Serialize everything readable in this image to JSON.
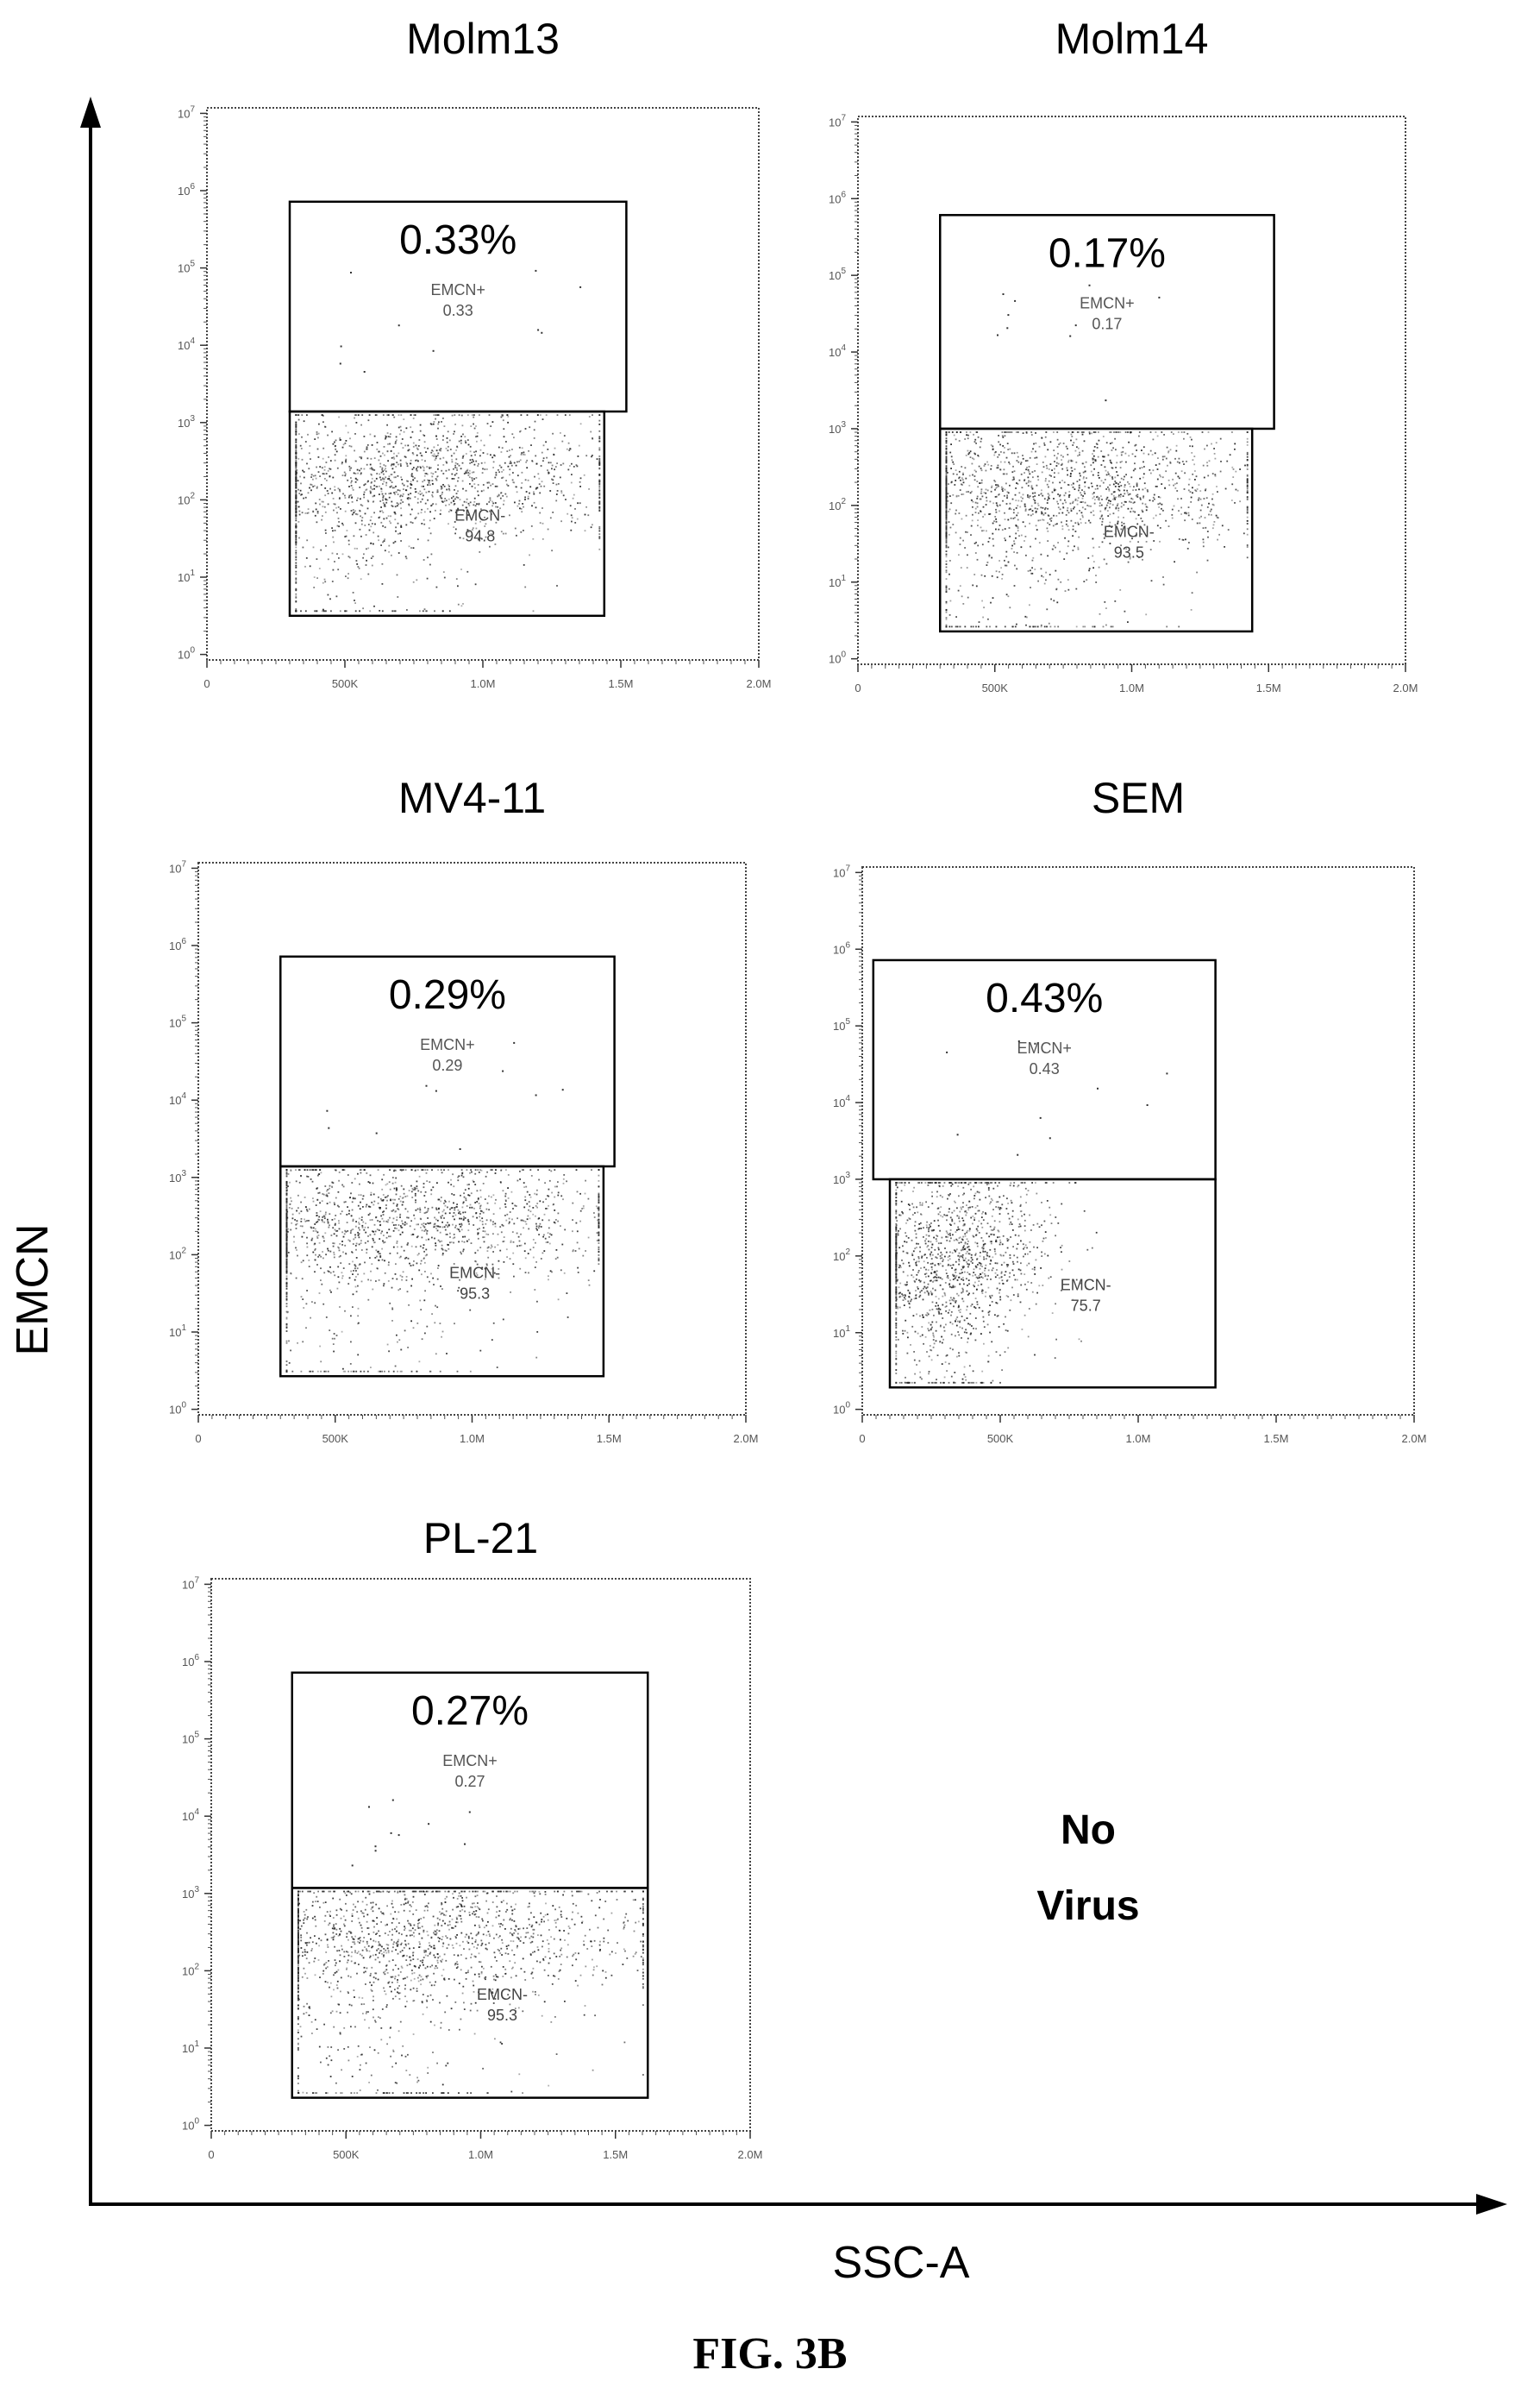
{
  "figure_label": "FIG. 3B",
  "axes": {
    "y_label": "EMCN",
    "x_label": "SSC-A"
  },
  "note": {
    "line1": "No",
    "line2": "Virus"
  },
  "chart_data": [
    {
      "type": "scatter",
      "title": "Molm13",
      "percent_label": "0.33%",
      "gates": [
        {
          "name": "EMCN+",
          "value": "0.33"
        },
        {
          "name": "EMCN-",
          "value": "94.8"
        }
      ],
      "x_ticks": [
        "0",
        "500K",
        "1.0M",
        "1.5M",
        "2.0M"
      ],
      "y_ticks": [
        "10^0",
        "10^1",
        "10^2",
        "10^3",
        "10^4",
        "10^5",
        "10^6",
        "10^7"
      ],
      "xlim": [
        0,
        2000000
      ],
      "y_scale": "log",
      "ylim": [
        1,
        10000000
      ]
    },
    {
      "type": "scatter",
      "title": "Molm14",
      "percent_label": "0.17%",
      "gates": [
        {
          "name": "EMCN+",
          "value": "0.17"
        },
        {
          "name": "EMCN-",
          "value": "93.5"
        }
      ],
      "x_ticks": [
        "0",
        "500K",
        "1.0M",
        "1.5M",
        "2.0M"
      ],
      "y_ticks": [
        "10^0",
        "10^1",
        "10^2",
        "10^3",
        "10^4",
        "10^5",
        "10^6",
        "10^7"
      ],
      "xlim": [
        0,
        2000000
      ],
      "y_scale": "log",
      "ylim": [
        1,
        10000000
      ]
    },
    {
      "type": "scatter",
      "title": "MV4-11",
      "percent_label": "0.29%",
      "gates": [
        {
          "name": "EMCN+",
          "value": "0.29"
        },
        {
          "name": "EMCN-",
          "value": "95.3"
        }
      ],
      "x_ticks": [
        "0",
        "500K",
        "1.0M",
        "1.5M",
        "2.0M"
      ],
      "y_ticks": [
        "10^0",
        "10^1",
        "10^2",
        "10^3",
        "10^4",
        "10^5",
        "10^6",
        "10^7"
      ],
      "xlim": [
        0,
        2000000
      ],
      "y_scale": "log",
      "ylim": [
        1,
        10000000
      ]
    },
    {
      "type": "scatter",
      "title": "SEM",
      "percent_label": "0.43%",
      "gates": [
        {
          "name": "EMCN+",
          "value": "0.43"
        },
        {
          "name": "EMCN-",
          "value": "75.7"
        }
      ],
      "x_ticks": [
        "0",
        "500K",
        "1.0M",
        "1.5M",
        "2.0M"
      ],
      "y_ticks": [
        "10^0",
        "10^1",
        "10^2",
        "10^3",
        "10^4",
        "10^5",
        "10^6",
        "10^7"
      ],
      "xlim": [
        0,
        2000000
      ],
      "y_scale": "log",
      "ylim": [
        1,
        10000000
      ]
    },
    {
      "type": "scatter",
      "title": "PL-21",
      "percent_label": "0.27%",
      "gates": [
        {
          "name": "EMCN+",
          "value": "0.27"
        },
        {
          "name": "EMCN-",
          "value": "95.3"
        }
      ],
      "x_ticks": [
        "0",
        "500K",
        "1.0M",
        "1.5M",
        "2.0M"
      ],
      "y_ticks": [
        "10^0",
        "10^1",
        "10^2",
        "10^3",
        "10^4",
        "10^5",
        "10^6",
        "10^7"
      ],
      "xlim": [
        0,
        2000000
      ],
      "y_scale": "log",
      "ylim": [
        1,
        10000000
      ]
    }
  ]
}
